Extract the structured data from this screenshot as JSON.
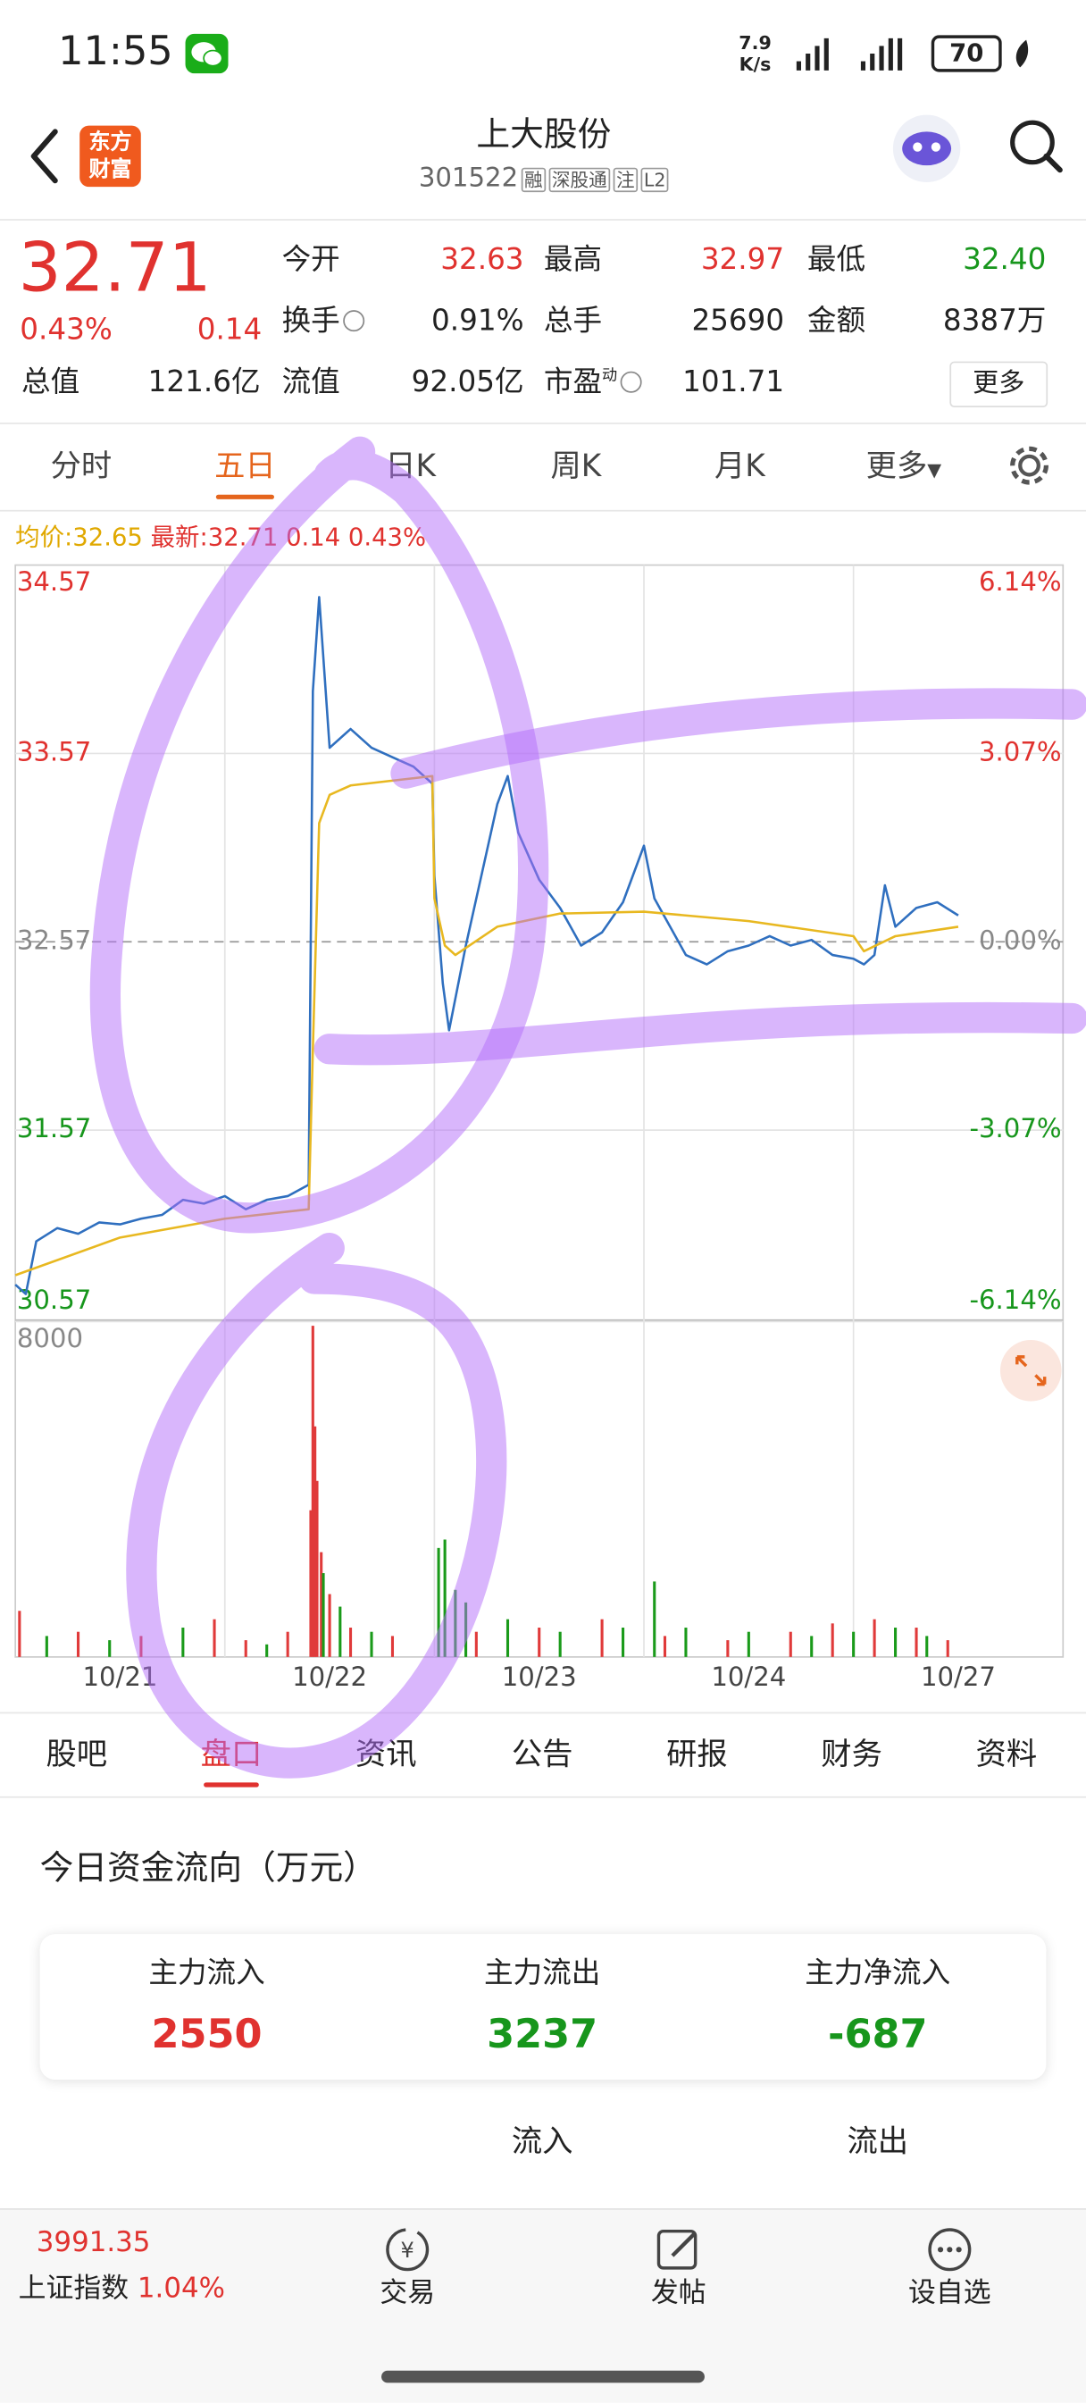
{
  "status_bar": {
    "time": "11:55",
    "net_speed": "7.9",
    "net_unit": "K/s",
    "battery": "70"
  },
  "header": {
    "logo": [
      "东方",
      "财富"
    ],
    "title": "上大股份",
    "code": "301522",
    "tags": [
      "融",
      "深股通",
      "注",
      "L2"
    ]
  },
  "quote": {
    "price": "32.71",
    "change_pct": "0.43%",
    "change": "0.14",
    "fields": [
      {
        "label": "今开",
        "value": "32.63"
      },
      {
        "label": "最高",
        "value": "32.97"
      },
      {
        "label": "最低",
        "value": "32.40"
      },
      {
        "label": "换手",
        "value": "0.91%"
      },
      {
        "label": "总手",
        "value": "25690"
      },
      {
        "label": "金额",
        "value": "8387万"
      },
      {
        "label": "总值",
        "value": "121.6亿"
      },
      {
        "label": "流值",
        "value": "92.05亿"
      },
      {
        "label": "市盈",
        "value": "101.71"
      }
    ],
    "pe_note": "动",
    "more": "更多"
  },
  "period_tabs": [
    "分时",
    "五日",
    "日K",
    "周K",
    "月K",
    "更多"
  ],
  "legend": {
    "avg_label": "均价:",
    "avg": "32.65",
    "last_label": "最新:",
    "last": "32.71",
    "change": "0.14",
    "change_pct": "0.43%"
  },
  "chart_data": {
    "type": "line",
    "xlim": [
      0,
      5
    ],
    "xticks": [
      {
        "value": 0.5,
        "label": "10/21"
      },
      {
        "value": 1.5,
        "label": "10/22"
      },
      {
        "value": 2.5,
        "label": "10/23"
      },
      {
        "value": 3.5,
        "label": "10/24"
      },
      {
        "value": 4.5,
        "label": "10/27"
      }
    ],
    "ylim": [
      30.57,
      34.57
    ],
    "yticks": [
      34.57,
      33.57,
      32.57,
      31.57,
      30.57
    ],
    "y2lim": [
      -6.14,
      6.14
    ],
    "y2ticks": [
      {
        "value": 6.14,
        "label": "6.14%"
      },
      {
        "value": 3.07,
        "label": "3.07%"
      },
      {
        "value": 0,
        "label": "0.00%"
      },
      {
        "value": -3.07,
        "label": "-3.07%"
      },
      {
        "value": -6.14,
        "label": "-6.14%"
      }
    ],
    "series": [
      {
        "color": "#2f6fbf",
        "x": [
          0,
          0.05,
          0.1,
          0.2,
          0.3,
          0.4,
          0.5,
          0.6,
          0.7,
          0.8,
          0.9,
          1.0,
          1.1,
          1.2,
          1.3,
          1.4,
          1.42,
          1.45,
          1.5,
          1.6,
          1.7,
          1.8,
          1.9,
          1.99,
          2.0,
          2.04,
          2.07,
          2.15,
          2.3,
          2.35,
          2.4,
          2.5,
          2.6,
          2.7,
          2.8,
          2.9,
          3.0,
          3.05,
          3.1,
          3.2,
          3.3,
          3.4,
          3.5,
          3.6,
          3.7,
          3.8,
          3.9,
          4.0,
          4.05,
          4.1,
          4.15,
          4.2,
          4.3,
          4.4,
          4.5
        ],
        "values": [
          30.75,
          30.7,
          30.98,
          31.05,
          31.02,
          31.08,
          31.07,
          31.1,
          31.12,
          31.2,
          31.18,
          31.22,
          31.15,
          31.2,
          31.22,
          31.28,
          33.9,
          34.4,
          33.6,
          33.7,
          33.6,
          33.55,
          33.5,
          33.41,
          32.92,
          32.35,
          32.1,
          32.55,
          33.3,
          33.45,
          33.15,
          32.9,
          32.75,
          32.55,
          32.62,
          32.78,
          33.08,
          32.8,
          32.7,
          32.5,
          32.45,
          32.52,
          32.55,
          32.6,
          32.55,
          32.58,
          32.5,
          32.48,
          32.45,
          32.5,
          32.87,
          32.65,
          32.75,
          32.78,
          32.71
        ]
      },
      {
        "color": "#e8b820",
        "x": [
          0,
          0.5,
          1.0,
          1.4,
          1.42,
          1.45,
          1.5,
          1.6,
          1.99,
          2.0,
          2.05,
          2.1,
          2.3,
          2.6,
          3.0,
          3.5,
          4.0,
          4.05,
          4.2,
          4.5
        ],
        "values": [
          30.8,
          31.0,
          31.1,
          31.15,
          32.0,
          33.2,
          33.35,
          33.4,
          33.45,
          32.8,
          32.55,
          32.5,
          32.65,
          32.72,
          32.73,
          32.68,
          32.6,
          32.52,
          32.6,
          32.65
        ]
      }
    ],
    "volume": {
      "ylim": [
        0,
        8000
      ],
      "yticks": [
        8000
      ],
      "series": [
        {
          "color": "#e03a3a",
          "x": [
            0.02,
            0.3,
            0.6,
            0.95,
            1.1,
            1.3,
            1.41,
            1.42,
            1.43,
            1.44,
            1.46,
            1.5,
            1.6,
            1.8,
            2.2,
            2.5,
            2.8,
            3.1,
            3.4,
            3.7,
            3.9,
            4.1,
            4.3,
            4.45
          ],
          "values": [
            1100,
            600,
            500,
            900,
            400,
            600,
            3500,
            7900,
            5500,
            4200,
            2500,
            1500,
            700,
            500,
            600,
            700,
            900,
            500,
            400,
            600,
            800,
            900,
            700,
            400
          ]
        },
        {
          "color": "#1a9a1a",
          "x": [
            0.15,
            0.45,
            0.8,
            1.2,
            1.47,
            1.55,
            1.7,
            2.02,
            2.05,
            2.1,
            2.15,
            2.35,
            2.6,
            2.9,
            3.05,
            3.2,
            3.5,
            3.8,
            4.0,
            4.2,
            4.35
          ],
          "values": [
            500,
            400,
            700,
            300,
            2000,
            1200,
            600,
            2600,
            2800,
            1600,
            1300,
            900,
            600,
            700,
            1800,
            700,
            600,
            500,
            600,
            700,
            500
          ]
        }
      ]
    }
  },
  "detail_tabs": [
    "股吧",
    "盘口",
    "资讯",
    "公告",
    "研报",
    "财务",
    "资料"
  ],
  "fund_flow": {
    "title": "今日资金流向（万元）",
    "cards": [
      {
        "label": "主力流入",
        "value": "2550"
      },
      {
        "label": "主力流出",
        "value": "3237"
      },
      {
        "label": "主力净流入",
        "value": "-687"
      }
    ],
    "columns": [
      "流入",
      "流出"
    ]
  },
  "bottom_bar": {
    "index_value": "3991.35",
    "index_name": "上证指数",
    "index_change": "1.04%",
    "actions": [
      "交易",
      "发帖",
      "设自选"
    ]
  }
}
